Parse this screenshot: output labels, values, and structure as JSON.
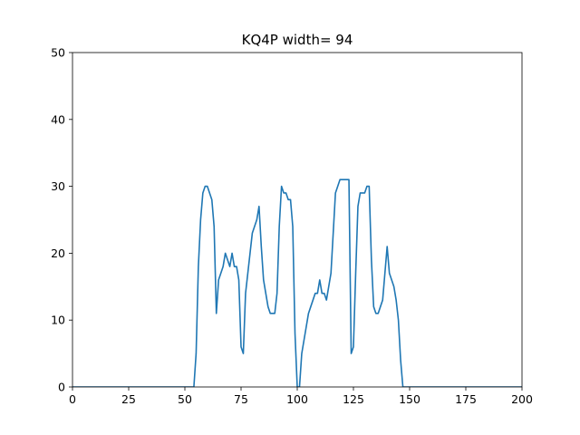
{
  "chart_data": {
    "type": "line",
    "title": "KQ4P width= 94",
    "xlabel": "",
    "ylabel": "",
    "xlim": [
      0,
      200
    ],
    "ylim": [
      0,
      50
    ],
    "xticks": [
      0,
      25,
      50,
      75,
      100,
      125,
      150,
      175,
      200
    ],
    "yticks": [
      0,
      10,
      20,
      30,
      40,
      50
    ],
    "grid": false,
    "line_color": "#1f77b4",
    "series": [
      {
        "x": [
          0,
          54,
          55,
          56,
          57,
          58,
          59,
          60,
          61,
          62,
          63,
          64,
          65,
          66,
          67,
          68,
          69,
          70,
          71,
          72,
          73,
          74,
          75,
          76,
          77,
          78,
          79,
          80,
          81,
          82,
          83,
          84,
          85,
          86,
          87,
          88,
          89,
          90,
          91,
          92,
          93,
          94,
          95,
          96,
          97,
          98,
          99,
          100,
          101,
          102,
          103,
          104,
          105,
          106,
          107,
          108,
          109,
          110,
          111,
          112,
          113,
          114,
          115,
          116,
          117,
          118,
          119,
          120,
          121,
          122,
          123,
          124,
          125,
          126,
          127,
          128,
          129,
          130,
          131,
          132,
          133,
          134,
          135,
          136,
          137,
          138,
          139,
          140,
          141,
          142,
          143,
          144,
          145,
          146,
          147,
          148,
          200
        ],
        "y": [
          0,
          0,
          5,
          18,
          25,
          29,
          30,
          30,
          29,
          28,
          24,
          11,
          16,
          17,
          18,
          20,
          19,
          18,
          20,
          18,
          18,
          16,
          6,
          5,
          14,
          17,
          20,
          23,
          24,
          25,
          27,
          21,
          16,
          14,
          12,
          11,
          11,
          11,
          14,
          24,
          30,
          29,
          29,
          28,
          28,
          24,
          8,
          0,
          0,
          5,
          7,
          9,
          11,
          12,
          13,
          14,
          14,
          16,
          14,
          14,
          13,
          15,
          17,
          23,
          29,
          30,
          31,
          31,
          31,
          31,
          31,
          5,
          6,
          17,
          27,
          29,
          29,
          29,
          30,
          30,
          19,
          12,
          11,
          11,
          12,
          13,
          17,
          21,
          17,
          16,
          15,
          13,
          10,
          4,
          0,
          0,
          0
        ]
      }
    ]
  }
}
